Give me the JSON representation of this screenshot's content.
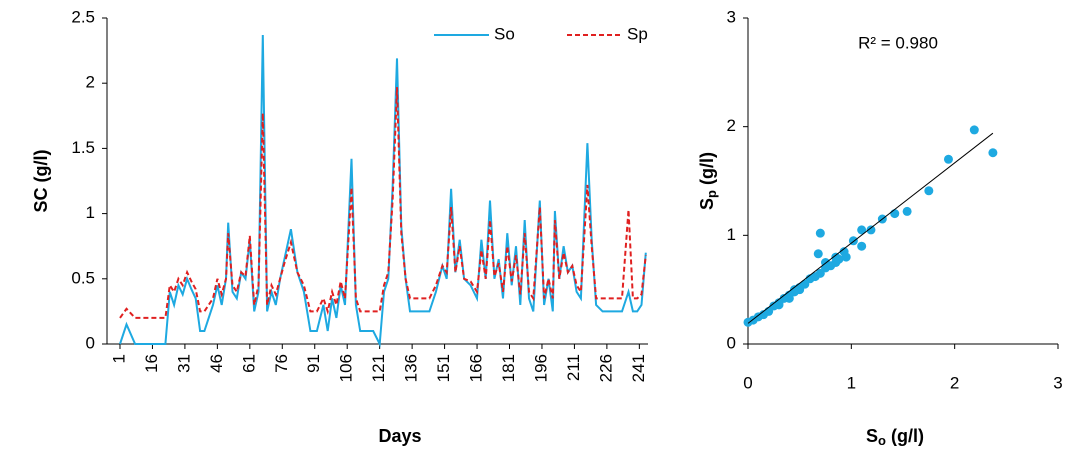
{
  "chart_data": [
    {
      "type": "line",
      "xlabel": "Days",
      "ylabel": "SC (g/l)",
      "xlim": [
        -5,
        245
      ],
      "ylim": [
        0,
        2.5
      ],
      "xticks": [
        1,
        16,
        31,
        46,
        61,
        76,
        91,
        106,
        121,
        136,
        151,
        166,
        181,
        196,
        211,
        226,
        241
      ],
      "yticks": [
        0,
        0.5,
        1,
        1.5,
        2,
        2.5
      ],
      "legend": "top-right",
      "x": [
        1,
        4,
        8,
        12,
        16,
        20,
        22,
        24,
        26,
        28,
        30,
        32,
        34,
        36,
        38,
        40,
        42,
        44,
        46,
        48,
        50,
        51,
        53,
        55,
        57,
        59,
        61,
        63,
        65,
        67,
        69,
        71,
        73,
        75,
        77,
        80,
        83,
        86,
        89,
        92,
        95,
        97,
        99,
        101,
        103,
        105,
        108,
        110,
        112,
        115,
        118,
        121,
        123,
        125,
        127,
        129,
        131,
        133,
        135,
        138,
        141,
        144,
        147,
        150,
        152,
        154,
        156,
        158,
        160,
        163,
        166,
        168,
        170,
        172,
        174,
        176,
        178,
        180,
        182,
        184,
        186,
        188,
        190,
        192,
        195,
        197,
        199,
        201,
        202,
        204,
        206,
        208,
        210,
        212,
        214,
        217,
        219,
        221,
        224,
        227,
        230,
        233,
        236,
        238,
        240,
        242,
        244
      ],
      "series": [
        {
          "name": "So",
          "color": "#1ea9e1",
          "dash": false,
          "values": [
            0,
            0.15,
            0,
            0,
            0,
            0,
            0,
            0.4,
            0.3,
            0.45,
            0.38,
            0.5,
            0.42,
            0.35,
            0.1,
            0.1,
            0.2,
            0.3,
            0.45,
            0.3,
            0.5,
            0.93,
            0.4,
            0.35,
            0.55,
            0.5,
            0.8,
            0.25,
            0.4,
            2.37,
            0.25,
            0.4,
            0.3,
            0.5,
            0.65,
            0.88,
            0.55,
            0.4,
            0.1,
            0.1,
            0.3,
            0.1,
            0.35,
            0.2,
            0.45,
            0.3,
            1.42,
            0.3,
            0.1,
            0.1,
            0.1,
            0,
            0.4,
            0.5,
            1.2,
            2.19,
            0.9,
            0.5,
            0.25,
            0.25,
            0.25,
            0.25,
            0.4,
            0.6,
            0.5,
            1.19,
            0.55,
            0.8,
            0.5,
            0.45,
            0.35,
            0.8,
            0.5,
            1.1,
            0.5,
            0.65,
            0.35,
            0.85,
            0.45,
            0.75,
            0.3,
            0.95,
            0.35,
            0.25,
            1.1,
            0.3,
            0.5,
            0.25,
            1.02,
            0.5,
            0.75,
            0.55,
            0.6,
            0.4,
            0.35,
            1.54,
            0.8,
            0.3,
            0.25,
            0.25,
            0.25,
            0.25,
            0.4,
            0.25,
            0.25,
            0.3,
            0.7
          ]
        },
        {
          "name": "Sp",
          "color": "#e02020",
          "dash": true,
          "values": [
            0.2,
            0.27,
            0.2,
            0.2,
            0.2,
            0.2,
            0.2,
            0.45,
            0.4,
            0.5,
            0.45,
            0.55,
            0.48,
            0.42,
            0.25,
            0.25,
            0.3,
            0.35,
            0.5,
            0.38,
            0.5,
            0.85,
            0.45,
            0.4,
            0.55,
            0.52,
            0.83,
            0.3,
            0.45,
            1.77,
            0.3,
            0.45,
            0.38,
            0.5,
            0.62,
            0.78,
            0.55,
            0.45,
            0.25,
            0.25,
            0.35,
            0.25,
            0.4,
            0.3,
            0.48,
            0.35,
            1.2,
            0.35,
            0.25,
            0.25,
            0.25,
            0.25,
            0.45,
            0.55,
            1.1,
            1.97,
            0.85,
            0.5,
            0.35,
            0.35,
            0.35,
            0.35,
            0.45,
            0.6,
            0.55,
            1.05,
            0.55,
            0.75,
            0.5,
            0.48,
            0.4,
            0.72,
            0.5,
            0.95,
            0.52,
            0.62,
            0.4,
            0.75,
            0.48,
            0.68,
            0.38,
            0.85,
            0.4,
            0.35,
            1.05,
            0.35,
            0.5,
            0.35,
            0.95,
            0.5,
            0.7,
            0.55,
            0.6,
            0.45,
            0.4,
            1.22,
            0.75,
            0.35,
            0.35,
            0.35,
            0.35,
            0.35,
            1.03,
            0.35,
            0.35,
            0.38,
            0.68
          ]
        }
      ]
    },
    {
      "type": "scatter",
      "xlabel": [
        "S",
        "o",
        " (g/l)"
      ],
      "ylabel": [
        "S",
        "p",
        " (g/l)"
      ],
      "annotation": "R² = 0.980",
      "xlim": [
        0,
        3
      ],
      "ylim": [
        0,
        3
      ],
      "xticks": [
        0,
        1,
        2,
        3
      ],
      "yticks": [
        0,
        1,
        2,
        3
      ],
      "color": "#1ea9e1",
      "x": [
        0.7,
        0.68,
        2.19,
        2.37,
        1.94,
        1.75,
        1.54,
        1.42,
        1.3,
        1.19,
        1.1,
        1.02,
        1.1,
        0.93,
        0.88,
        0.95,
        0.85,
        0.8,
        0.75,
        0.7,
        0.65,
        0.6,
        0.55,
        0.5,
        0.45,
        0.4,
        0.35,
        0.3,
        0.25,
        0.2,
        0.15,
        0.1,
        0.05,
        0,
        0.5,
        0.45,
        0.4,
        0.3,
        0.85,
        0.75
      ],
      "y": [
        1.02,
        0.83,
        1.97,
        1.76,
        1.7,
        1.41,
        1.22,
        1.2,
        1.15,
        1.05,
        1.05,
        0.95,
        0.9,
        0.85,
        0.78,
        0.8,
        0.75,
        0.72,
        0.7,
        0.65,
        0.62,
        0.6,
        0.55,
        0.5,
        0.48,
        0.45,
        0.42,
        0.38,
        0.35,
        0.3,
        0.27,
        0.25,
        0.22,
        0.2,
        0.52,
        0.5,
        0.42,
        0.36,
        0.8,
        0.75
      ],
      "trendline": {
        "color": "#000000",
        "x": [
          0,
          2.37
        ],
        "y": [
          0.19,
          1.94
        ]
      }
    }
  ]
}
